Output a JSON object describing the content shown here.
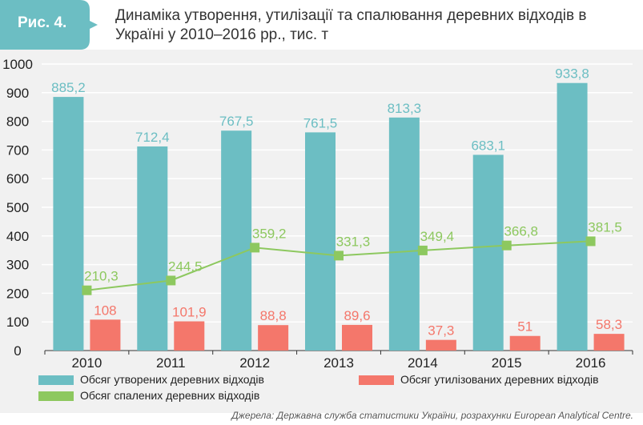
{
  "header": {
    "figure_label": "Рис. 4.",
    "title_line1": "Динаміка утворення, утилізації та спалювання деревних відходів в",
    "title_line2": "Україні у 2010–2016 рр., тис. т"
  },
  "chart_data": {
    "type": "bar",
    "categories": [
      "2010",
      "2011",
      "2012",
      "2013",
      "2014",
      "2015",
      "2016"
    ],
    "ylim": [
      0,
      1000
    ],
    "yticks": [
      0,
      100,
      200,
      300,
      400,
      500,
      600,
      700,
      800,
      900,
      1000
    ],
    "grid": true,
    "series": [
      {
        "name": "Обсяг утворених деревних відходів",
        "kind": "bar",
        "color": "#6cbec3",
        "values": [
          885.2,
          712.4,
          767.5,
          761.5,
          813.3,
          683.1,
          933.8
        ],
        "labels": [
          "885,2",
          "712,4",
          "767,5",
          "761,5",
          "813,3",
          "683,1",
          "933,8"
        ]
      },
      {
        "name": "Обсяг утилізованих деревних відходів",
        "kind": "bar",
        "color": "#f4776b",
        "values": [
          108,
          101.9,
          88.8,
          89.6,
          37.3,
          51,
          58.3
        ],
        "labels": [
          "108",
          "101,9",
          "88,8",
          "89,6",
          "37,3",
          "51",
          "58,3"
        ]
      },
      {
        "name": "Обсяг спалених деревних відходів",
        "kind": "line",
        "color": "#8dc85f",
        "values": [
          210.3,
          244.5,
          359.2,
          331.3,
          349.4,
          366.8,
          381.5
        ],
        "labels": [
          "210,3",
          "244,5",
          "359,2",
          "331,3",
          "349,4",
          "366,8",
          "381,5"
        ]
      }
    ],
    "legend_position": "bottom"
  },
  "source": "Джерела: Державна служба статистики України, розрахунки European Analytical Centre.",
  "colors": {
    "badge": "#6cbec3",
    "background": "#f1f1f1"
  }
}
